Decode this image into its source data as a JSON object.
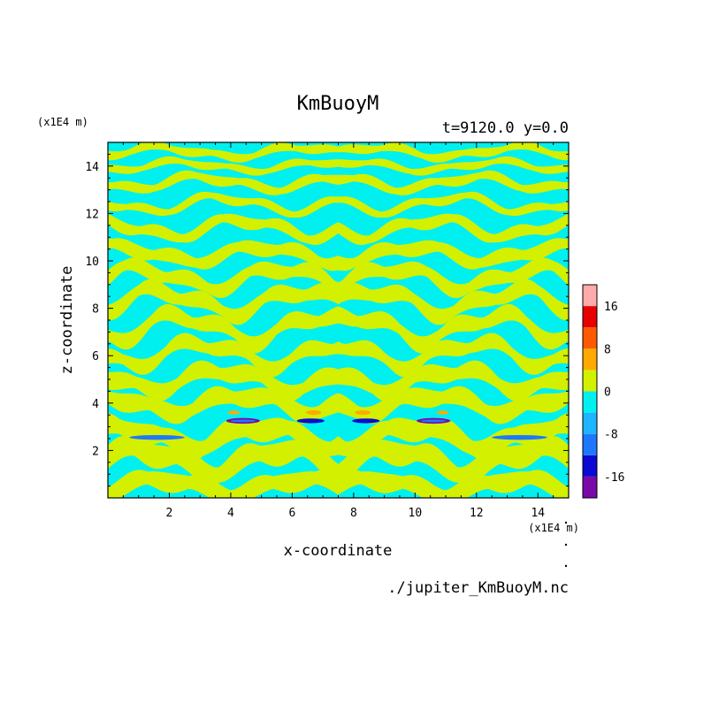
{
  "chart_data": {
    "type": "heatmap",
    "title": "KmBuoyM",
    "subtitle": "t=9120.0 y=0.0",
    "xlabel": "x-coordinate",
    "ylabel": "z-coordinate",
    "x_unit_label": "(x1E4 m)",
    "y_unit_label": "(x1E4 m)",
    "source_file": "./jupiter_KmBuoyM.nc",
    "xlim": [
      0,
      15
    ],
    "ylim": [
      0,
      15
    ],
    "x_ticks": [
      2,
      4,
      6,
      8,
      10,
      12,
      14
    ],
    "y_ticks": [
      2,
      4,
      6,
      8,
      10,
      12,
      14
    ],
    "colorbar": {
      "tick_labels": [
        "16",
        "8",
        "0",
        "-8",
        "-16"
      ],
      "tick_values": [
        16,
        8,
        0,
        -8,
        -16
      ],
      "levels": [
        {
          "min": -20,
          "max": -16,
          "color": "#7a0aa8"
        },
        {
          "min": -16,
          "max": -12,
          "color": "#0a0ad2"
        },
        {
          "min": -12,
          "max": -8,
          "color": "#1e78ff"
        },
        {
          "min": -8,
          "max": -4,
          "color": "#1eb4ff"
        },
        {
          "min": -4,
          "max": 0,
          "color": "#00f0f0"
        },
        {
          "min": 0,
          "max": 4,
          "color": "#d2f000"
        },
        {
          "min": 4,
          "max": 8,
          "color": "#ffaa00"
        },
        {
          "min": 8,
          "max": 12,
          "color": "#ff5a00"
        },
        {
          "min": 12,
          "max": 16,
          "color": "#e60000"
        },
        {
          "min": 16,
          "max": 20,
          "color": "#ffaaaa"
        }
      ]
    },
    "field": {
      "background_color": "#00f0f0",
      "positive_color": "#d2f000",
      "bands": [
        {
          "z": 14.6,
          "amp": 0.2,
          "width": 0.16
        },
        {
          "z": 14.0,
          "amp": 0.18,
          "width": 0.14
        },
        {
          "z": 13.3,
          "amp": 0.25,
          "width": 0.18
        },
        {
          "z": 12.4,
          "amp": 0.3,
          "width": 0.16
        },
        {
          "z": 11.4,
          "amp": 0.35,
          "width": 0.22
        },
        {
          "z": 10.3,
          "amp": 0.3,
          "width": 0.26
        },
        {
          "z": 9.3,
          "amp": 0.4,
          "width": 0.28
        },
        {
          "z": 8.3,
          "amp": 0.45,
          "width": 0.3
        },
        {
          "z": 7.2,
          "amp": 0.5,
          "width": 0.3
        },
        {
          "z": 6.1,
          "amp": 0.45,
          "width": 0.28
        },
        {
          "z": 5.0,
          "amp": 0.4,
          "width": 0.32
        },
        {
          "z": 4.0,
          "amp": 0.35,
          "width": 0.34
        },
        {
          "z": 2.6,
          "amp": 0.4,
          "width": 0.4
        },
        {
          "z": 1.6,
          "amp": 0.45,
          "width": 0.42
        },
        {
          "z": 0.5,
          "amp": 0.3,
          "width": 0.35
        }
      ],
      "features": [
        {
          "x": 4.4,
          "z": 3.25,
          "rx": 0.55,
          "rz": 0.12,
          "value": -18
        },
        {
          "x": 10.6,
          "z": 3.25,
          "rx": 0.55,
          "rz": 0.12,
          "value": -18
        },
        {
          "x": 6.6,
          "z": 3.25,
          "rx": 0.45,
          "rz": 0.1,
          "value": -14
        },
        {
          "x": 8.4,
          "z": 3.25,
          "rx": 0.45,
          "rz": 0.1,
          "value": -14
        },
        {
          "x": 6.7,
          "z": 3.6,
          "rx": 0.25,
          "rz": 0.1,
          "value": 6
        },
        {
          "x": 8.3,
          "z": 3.6,
          "rx": 0.25,
          "rz": 0.1,
          "value": 6
        },
        {
          "x": 4.1,
          "z": 3.6,
          "rx": 0.2,
          "rz": 0.08,
          "value": 6
        },
        {
          "x": 10.9,
          "z": 3.6,
          "rx": 0.2,
          "rz": 0.08,
          "value": 6
        },
        {
          "x": 1.6,
          "z": 2.55,
          "rx": 0.9,
          "rz": 0.1,
          "value": -10
        },
        {
          "x": 13.4,
          "z": 2.55,
          "rx": 0.9,
          "rz": 0.1,
          "value": -10
        },
        {
          "x": 3.5,
          "z": 4.5,
          "rx": 0.3,
          "rz": 0.1,
          "value": 2
        },
        {
          "x": 11.5,
          "z": 4.5,
          "rx": 0.3,
          "rz": 0.1,
          "value": 2
        }
      ]
    }
  }
}
